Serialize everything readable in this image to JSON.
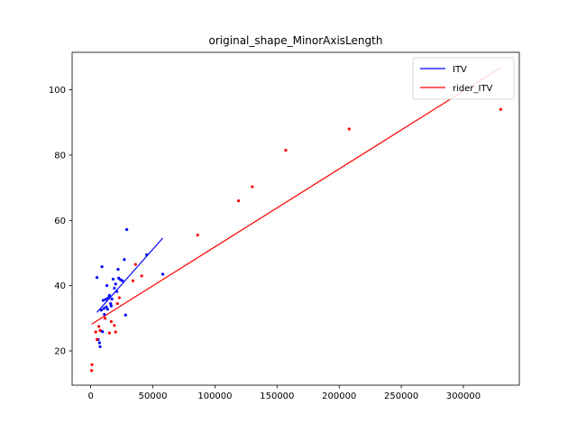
{
  "chart_data": {
    "type": "scatter",
    "title": "original_shape_MinorAxisLength",
    "xlabel": "",
    "ylabel": "",
    "xlim": [
      -15000,
      345000
    ],
    "ylim": [
      9.5,
      111.5
    ],
    "xticks": [
      0,
      50000,
      100000,
      150000,
      200000,
      250000,
      300000
    ],
    "xtick_labels": [
      "0",
      "50000",
      "100000",
      "150000",
      "200000",
      "250000",
      "300000"
    ],
    "yticks": [
      20,
      40,
      60,
      80,
      100
    ],
    "ytick_labels": [
      "20",
      "40",
      "60",
      "80",
      "100"
    ],
    "grid": false,
    "legend": {
      "position": "top-right",
      "entries": [
        {
          "label": "ITV",
          "color": "#0000ff"
        },
        {
          "label": "rider_ITV",
          "color": "#ff0000"
        }
      ]
    },
    "series": [
      {
        "name": "ITV",
        "color": "#0000ff",
        "points": [
          [
            5000,
            42.5
          ],
          [
            6000,
            23.5
          ],
          [
            7000,
            22.5
          ],
          [
            7500,
            21.3
          ],
          [
            8000,
            26.2
          ],
          [
            8500,
            32.5
          ],
          [
            9000,
            45.8
          ],
          [
            9500,
            25.9
          ],
          [
            10000,
            35.5
          ],
          [
            10500,
            33
          ],
          [
            11000,
            31.2
          ],
          [
            12000,
            35.8
          ],
          [
            12500,
            33.5
          ],
          [
            13000,
            40
          ],
          [
            13500,
            32.8
          ],
          [
            14000,
            36.2
          ],
          [
            15000,
            37
          ],
          [
            16000,
            34.5
          ],
          [
            16500,
            33.8
          ],
          [
            17000,
            35.9
          ],
          [
            18000,
            42
          ],
          [
            19000,
            39.2
          ],
          [
            20000,
            40.5
          ],
          [
            21000,
            38.2
          ],
          [
            22000,
            45
          ],
          [
            22500,
            42.3
          ],
          [
            24000,
            41.8
          ],
          [
            25500,
            41.5
          ],
          [
            27000,
            48
          ],
          [
            28000,
            31
          ],
          [
            29000,
            57.2
          ],
          [
            45000,
            49.5
          ],
          [
            58000,
            43.5
          ]
        ],
        "trendline": [
          [
            5000,
            31.8
          ],
          [
            58000,
            54.6
          ]
        ]
      },
      {
        "name": "rider_ITV",
        "color": "#ff0000",
        "points": [
          [
            700,
            14
          ],
          [
            1000,
            15.8
          ],
          [
            4000,
            25.8
          ],
          [
            5000,
            23.5
          ],
          [
            6500,
            27.5
          ],
          [
            7500,
            26.3
          ],
          [
            11500,
            30
          ],
          [
            15000,
            25.5
          ],
          [
            16500,
            29
          ],
          [
            19000,
            27.8
          ],
          [
            20000,
            25.8
          ],
          [
            21500,
            34.5
          ],
          [
            23000,
            36.3
          ],
          [
            34000,
            41.5
          ],
          [
            36000,
            46.5
          ],
          [
            41000,
            43
          ],
          [
            86000,
            55.5
          ],
          [
            119000,
            66
          ],
          [
            130000,
            70.3
          ],
          [
            157000,
            81.5
          ],
          [
            208000,
            88
          ],
          [
            330000,
            94
          ]
        ],
        "trendline": [
          [
            700,
            28.2
          ],
          [
            330000,
            106.8
          ]
        ]
      }
    ]
  }
}
